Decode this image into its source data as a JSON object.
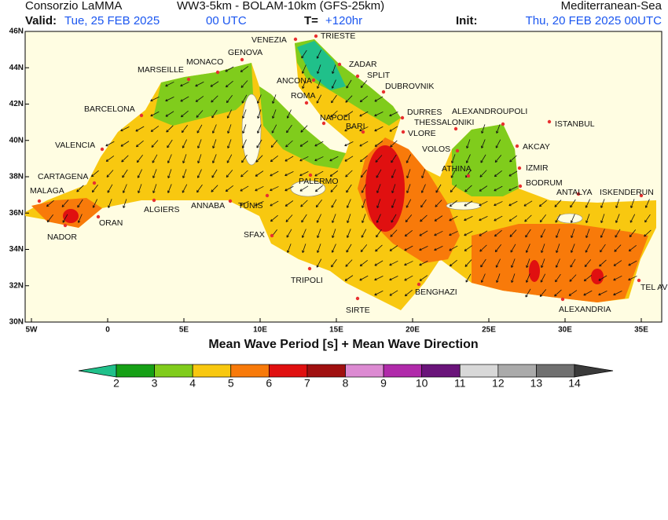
{
  "header": {
    "left": "Consorzio LaMMA",
    "center": "WW3-5km - BOLAM-10km (GFS-25km)",
    "right": "Mediterranean-Sea",
    "valid_label": "Valid:",
    "valid_date": "Tue, 25 FEB 2025",
    "valid_time": "00 UTC",
    "t_label": "T=",
    "t_value": "+120hr",
    "init_label": "Init:",
    "init_value": "Thu, 20 FEB 2025 00UTC"
  },
  "map": {
    "title": "Mean Wave Period [s] + Mean Wave Direction",
    "lon_labels": [
      "5W",
      "0",
      "5E",
      "10E",
      "15E",
      "20E",
      "25E",
      "30E",
      "35E"
    ],
    "lat_labels": [
      "46N",
      "44N",
      "42N",
      "40N",
      "38N",
      "36N",
      "34N",
      "32N",
      "30N"
    ],
    "cities": [
      "VENEZIA",
      "TRIESTE",
      "ZADAR",
      "SPLIT",
      "GENOVA",
      "MONACO",
      "MARSEILLE",
      "ANCONA",
      "DUBROVNIK",
      "ROMA",
      "BARCELONA",
      "DURRES",
      "ALEXANDROUPOLI",
      "NAPOLI",
      "THESSALONIKI",
      "BARI",
      "ISTANBUL",
      "VLORE",
      "VALENCIA",
      "VOLOS",
      "AKCAY",
      "ATHINA",
      "IZMIR",
      "CARTAGENA",
      "PALERMO",
      "BODRUM",
      "ANTALYA",
      "ISKENDERUN",
      "MALAGA",
      "ALGIERS",
      "ANNABA",
      "TUNIS",
      "ORAN",
      "NADOR",
      "SFAX",
      "TRIPOLI",
      "BENGHAZI",
      "SIRTE",
      "TEL AVIV",
      "ALEXANDRIA"
    ]
  },
  "colorbar": {
    "labels": [
      2,
      3,
      4,
      5,
      6,
      7,
      8,
      9,
      10,
      11,
      12,
      13,
      14
    ],
    "colors": [
      "#20c08a",
      "#16a016",
      "#80cc1c",
      "#f8c810",
      "#f87a0a",
      "#e01010",
      "#a01010",
      "#dc8ad2",
      "#b02aaa",
      "#6a147a",
      "#d8d8d8",
      "#aaaaaa",
      "#707070",
      "#3a3a3a"
    ]
  }
}
